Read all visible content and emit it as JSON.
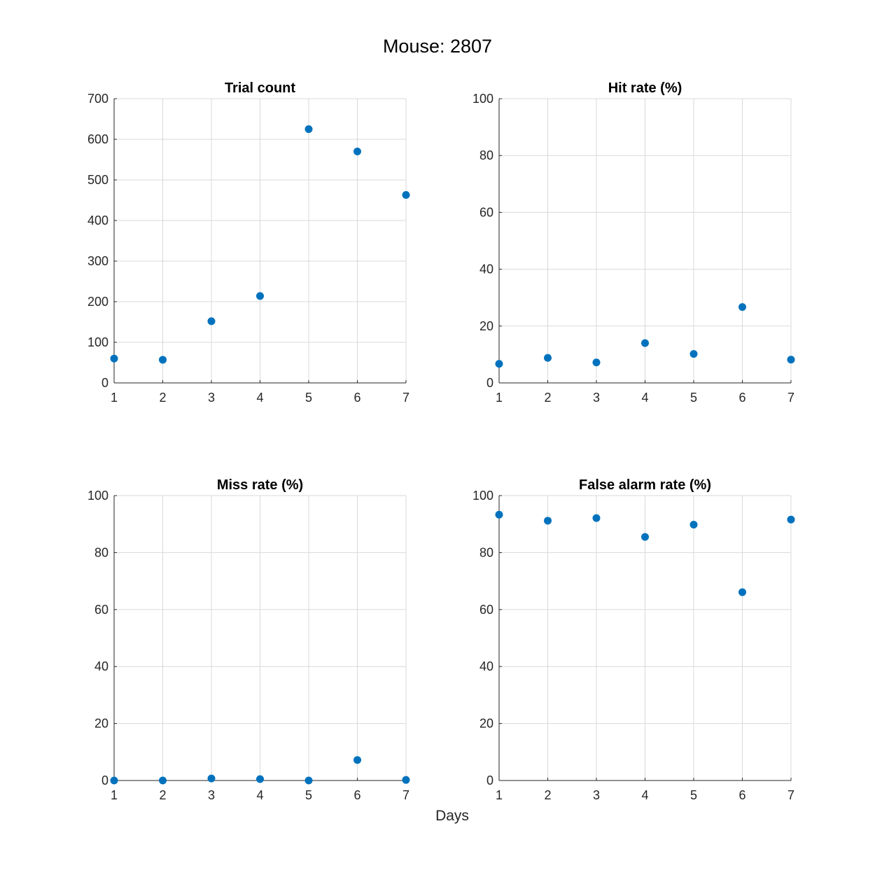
{
  "figure": {
    "title": "Mouse: 2807",
    "xlabel": "Days"
  },
  "colors": {
    "marker": "#0072BD",
    "grid": "#d9d9d9",
    "axis": "#262626"
  },
  "chart_data": [
    {
      "type": "scatter",
      "title": "Trial count",
      "xlim": [
        1,
        7
      ],
      "ylim": [
        0,
        700
      ],
      "xticks": [
        1,
        2,
        3,
        4,
        5,
        6,
        7
      ],
      "yticks": [
        0,
        100,
        200,
        300,
        400,
        500,
        600,
        700
      ],
      "grid": true,
      "x": [
        1,
        2,
        3,
        4,
        5,
        6,
        7
      ],
      "y": [
        60,
        57,
        152,
        214,
        625,
        570,
        463
      ]
    },
    {
      "type": "scatter",
      "title": "Hit rate (%)",
      "xlim": [
        1,
        7
      ],
      "ylim": [
        0,
        100
      ],
      "xticks": [
        1,
        2,
        3,
        4,
        5,
        6,
        7
      ],
      "yticks": [
        0,
        20,
        40,
        60,
        80,
        100
      ],
      "grid": true,
      "x": [
        1,
        2,
        3,
        4,
        5,
        6,
        7
      ],
      "y": [
        6.7,
        8.8,
        7.2,
        14.0,
        10.2,
        26.7,
        8.2
      ]
    },
    {
      "type": "scatter",
      "title": "Miss rate (%)",
      "xlim": [
        1,
        7
      ],
      "ylim": [
        0,
        100
      ],
      "xticks": [
        1,
        2,
        3,
        4,
        5,
        6,
        7
      ],
      "yticks": [
        0,
        20,
        40,
        60,
        80,
        100
      ],
      "grid": true,
      "x": [
        1,
        2,
        3,
        4,
        5,
        6,
        7
      ],
      "y": [
        0,
        0,
        0.7,
        0.5,
        0,
        7.2,
        0.2
      ]
    },
    {
      "type": "scatter",
      "title": "False alarm rate (%)",
      "xlim": [
        1,
        7
      ],
      "ylim": [
        0,
        100
      ],
      "xticks": [
        1,
        2,
        3,
        4,
        5,
        6,
        7
      ],
      "yticks": [
        0,
        20,
        40,
        60,
        80,
        100
      ],
      "grid": true,
      "x": [
        1,
        2,
        3,
        4,
        5,
        6,
        7
      ],
      "y": [
        93.3,
        91.2,
        92.1,
        85.5,
        89.8,
        66.1,
        91.6
      ]
    }
  ]
}
